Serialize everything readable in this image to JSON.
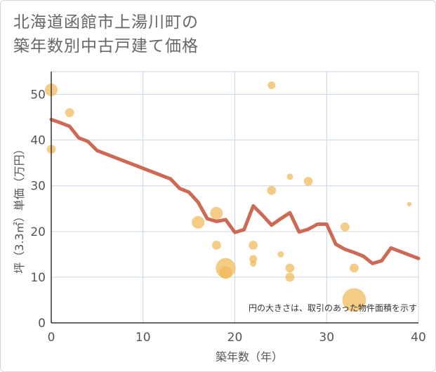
{
  "title_lines": [
    "北海道函館市上湯川町の",
    "築年数別中古戸建て価格"
  ],
  "chart_data": {
    "type": "scatter+line",
    "xlabel": "築年数（年）",
    "ylabel": "坪（3.3㎡）単価（万円）",
    "xlim": [
      0,
      40
    ],
    "ylim": [
      0,
      55
    ],
    "xticks": [
      "0",
      "10",
      "20",
      "30",
      "40"
    ],
    "yticks": [
      "0",
      "10",
      "20",
      "30",
      "40",
      "50"
    ],
    "note": "円の大きさは、取引のあった物件面積を示す",
    "colors": {
      "bubble": "#f0b857",
      "line": "#cd6a55",
      "grid": "#c9d6e3",
      "axis": "#333333"
    },
    "bubbles": [
      {
        "x": 0,
        "y": 51,
        "size": 4
      },
      {
        "x": 0,
        "y": 38,
        "size": 2
      },
      {
        "x": 2,
        "y": 46,
        "size": 2
      },
      {
        "x": 16,
        "y": 22,
        "size": 4
      },
      {
        "x": 18,
        "y": 24,
        "size": 4
      },
      {
        "x": 18,
        "y": 17,
        "size": 2
      },
      {
        "x": 19,
        "y": 12,
        "size": 10
      },
      {
        "x": 19,
        "y": 11,
        "size": 4
      },
      {
        "x": 22,
        "y": 17,
        "size": 2
      },
      {
        "x": 22,
        "y": 14,
        "size": 1.5
      },
      {
        "x": 22,
        "y": 13,
        "size": 1
      },
      {
        "x": 24,
        "y": 52,
        "size": 1.5
      },
      {
        "x": 24,
        "y": 29,
        "size": 2
      },
      {
        "x": 25,
        "y": 15,
        "size": 1
      },
      {
        "x": 26,
        "y": 32,
        "size": 1
      },
      {
        "x": 26,
        "y": 12,
        "size": 2
      },
      {
        "x": 26,
        "y": 10,
        "size": 2
      },
      {
        "x": 28,
        "y": 31,
        "size": 2
      },
      {
        "x": 32,
        "y": 21,
        "size": 2
      },
      {
        "x": 33,
        "y": 12,
        "size": 2
      },
      {
        "x": 33,
        "y": 5,
        "size": 14
      },
      {
        "x": 39,
        "y": 26,
        "size": 0.5
      }
    ],
    "line": [
      {
        "x": 0,
        "y": 44.5
      },
      {
        "x": 1,
        "y": 43.8
      },
      {
        "x": 2,
        "y": 43.0
      },
      {
        "x": 3,
        "y": 40.5
      },
      {
        "x": 4,
        "y": 39.7
      },
      {
        "x": 5,
        "y": 37.7
      },
      {
        "x": 13,
        "y": 31.5
      },
      {
        "x": 14,
        "y": 29.4
      },
      {
        "x": 15,
        "y": 28.6
      },
      {
        "x": 16,
        "y": 26.4
      },
      {
        "x": 17,
        "y": 22.8
      },
      {
        "x": 18,
        "y": 22.2
      },
      {
        "x": 19,
        "y": 22.6
      },
      {
        "x": 20,
        "y": 19.8
      },
      {
        "x": 21,
        "y": 20.4
      },
      {
        "x": 22,
        "y": 25.6
      },
      {
        "x": 23,
        "y": 23.6
      },
      {
        "x": 24,
        "y": 21.4
      },
      {
        "x": 25,
        "y": 22.8
      },
      {
        "x": 26,
        "y": 24.1
      },
      {
        "x": 27,
        "y": 19.9
      },
      {
        "x": 28,
        "y": 20.5
      },
      {
        "x": 29,
        "y": 21.6
      },
      {
        "x": 30,
        "y": 21.6
      },
      {
        "x": 31,
        "y": 17.2
      },
      {
        "x": 32,
        "y": 16.1
      },
      {
        "x": 33,
        "y": 15.4
      },
      {
        "x": 34,
        "y": 14.6
      },
      {
        "x": 35,
        "y": 13.0
      },
      {
        "x": 36,
        "y": 13.6
      },
      {
        "x": 37,
        "y": 16.4
      },
      {
        "x": 40,
        "y": 14.1
      }
    ]
  }
}
